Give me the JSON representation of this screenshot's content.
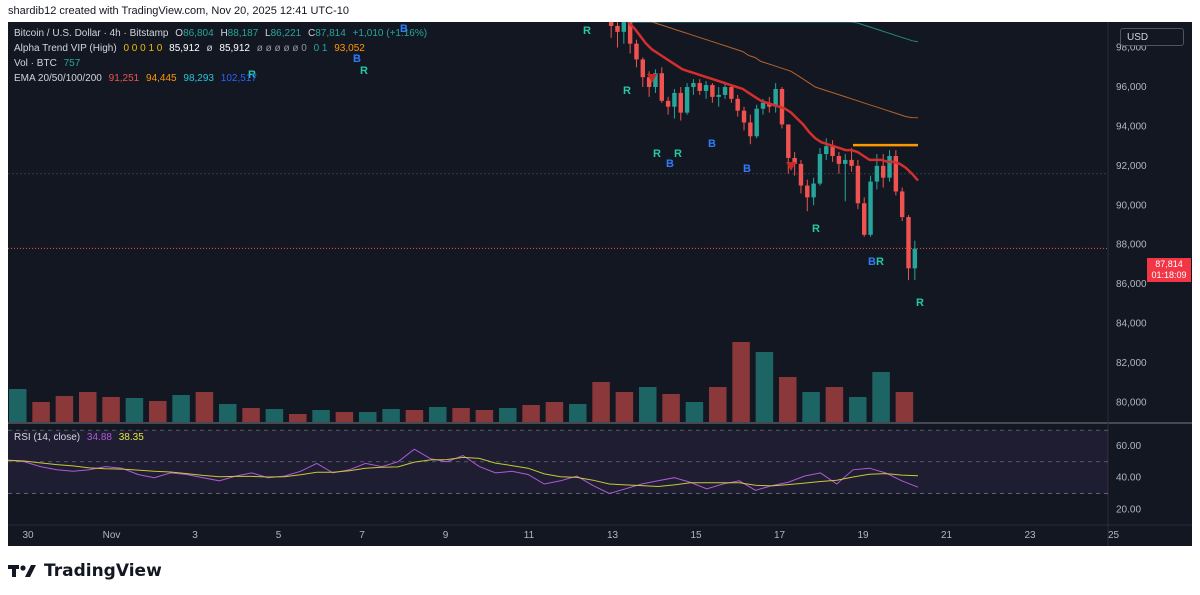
{
  "header": {
    "caption": "shardib12 created with TradingView.com, Nov 20, 2025 12:41 UTC-10"
  },
  "legend": {
    "symbol": "Bitcoin / U.S. Dollar · 4h · Bitstamp",
    "o_label": "O",
    "o_value": "86,804",
    "h_label": "H",
    "h_value": "88,187",
    "l_label": "L",
    "l_value": "86,221",
    "c_label": "C",
    "c_value": "87,814",
    "change": "+1,010 (+1.16%)",
    "alpha_label": "Alpha Trend VIP (High)",
    "alpha_values": "0 0 0 1 0",
    "alpha_v1": "85,912",
    "alpha_sep": "ø",
    "alpha_v2": "85,912",
    "alpha_nulls": "ø ø ø ø ø 0",
    "alpha_tail": "0 1",
    "alpha_v3": "93,052",
    "vol_label": "Vol · BTC",
    "vol_value": "757",
    "ema_label": "EMA 20/50/100/200",
    "ema20": "91,251",
    "ema50": "94,445",
    "ema100": "98,293",
    "ema200": "102,517",
    "rsi_label": "RSI (14, close)",
    "rsi_value": "34.88",
    "rsi_ma": "38.35"
  },
  "currency_button": "USD",
  "last_price": "87,814",
  "countdown": "01:18:09",
  "colors": {
    "background": "#131722",
    "up": "#26a69a",
    "down": "#ef5350",
    "ema20": "#d32f2f",
    "ema50": "#e1762c",
    "ema100": "#26a69a",
    "rsi_line": "#b05ad8",
    "rsi_ma": "#c8c83a",
    "signal_b": "#2f7bff",
    "signal_r": "#26c6a6",
    "alpha_line": "#ff9800"
  },
  "chart_data": {
    "type": "candlestick",
    "title": "Bitcoin / U.S. Dollar · 4h · Bitstamp",
    "x_tick_labels": [
      "30",
      "Nov",
      "3",
      "5",
      "7",
      "9",
      "11",
      "13",
      "15",
      "17",
      "19",
      "21",
      "23",
      "25"
    ],
    "y_tick_labels": [
      "98,000",
      "96,000",
      "94,000",
      "92,000",
      "90,000",
      "88,000",
      "86,000",
      "84,000",
      "82,000",
      "80,000"
    ],
    "y_ticks": [
      98000,
      96000,
      94000,
      92000,
      90000,
      88000,
      86000,
      84000,
      82000,
      80000
    ],
    "ylim": [
      79000,
      99300
    ],
    "rsi_tick_labels": [
      "60.00",
      "40.00",
      "20.00"
    ],
    "rsi_ticks": [
      60,
      40,
      20
    ],
    "rsi_ylim": [
      12,
      72
    ],
    "visible_candles": [
      {
        "o": 99300,
        "h": 99300,
        "l": 98500,
        "c": 99100
      },
      {
        "o": 99100,
        "h": 99300,
        "l": 98000,
        "c": 98800
      },
      {
        "o": 98800,
        "h": 99300,
        "l": 98200,
        "c": 99300
      },
      {
        "o": 99300,
        "h": 99300,
        "l": 97700,
        "c": 98200
      },
      {
        "o": 98200,
        "h": 98400,
        "l": 97000,
        "c": 97400
      },
      {
        "o": 97400,
        "h": 97500,
        "l": 96000,
        "c": 96500
      },
      {
        "o": 96500,
        "h": 96800,
        "l": 95500,
        "c": 96000
      },
      {
        "o": 96000,
        "h": 96900,
        "l": 95700,
        "c": 96700
      },
      {
        "o": 96700,
        "h": 97000,
        "l": 95200,
        "c": 95300
      },
      {
        "o": 95300,
        "h": 95500,
        "l": 94600,
        "c": 95000
      },
      {
        "o": 95000,
        "h": 95900,
        "l": 94400,
        "c": 95700
      },
      {
        "o": 95700,
        "h": 96000,
        "l": 94300,
        "c": 94700
      },
      {
        "o": 94700,
        "h": 96200,
        "l": 94600,
        "c": 96000
      },
      {
        "o": 96000,
        "h": 96400,
        "l": 95600,
        "c": 96200
      },
      {
        "o": 96200,
        "h": 96400,
        "l": 95600,
        "c": 95800
      },
      {
        "o": 95800,
        "h": 96300,
        "l": 95400,
        "c": 96100
      },
      {
        "o": 96100,
        "h": 96200,
        "l": 95200,
        "c": 95500
      },
      {
        "o": 95500,
        "h": 96000,
        "l": 95000,
        "c": 95600
      },
      {
        "o": 95600,
        "h": 96200,
        "l": 95400,
        "c": 96000
      },
      {
        "o": 96000,
        "h": 96100,
        "l": 95200,
        "c": 95400
      },
      {
        "o": 95400,
        "h": 95600,
        "l": 94500,
        "c": 94800
      },
      {
        "o": 94800,
        "h": 95000,
        "l": 93800,
        "c": 94200
      },
      {
        "o": 94200,
        "h": 94600,
        "l": 93100,
        "c": 93500
      },
      {
        "o": 93500,
        "h": 95100,
        "l": 93400,
        "c": 94900
      },
      {
        "o": 94900,
        "h": 95400,
        "l": 94600,
        "c": 95200
      },
      {
        "o": 95200,
        "h": 95500,
        "l": 94700,
        "c": 95000
      },
      {
        "o": 95000,
        "h": 96200,
        "l": 94700,
        "c": 95900
      },
      {
        "o": 95900,
        "h": 96000,
        "l": 93900,
        "c": 94100
      },
      {
        "o": 94100,
        "h": 93900,
        "l": 91600,
        "c": 92400
      },
      {
        "o": 92400,
        "h": 92700,
        "l": 91500,
        "c": 92100
      },
      {
        "o": 92100,
        "h": 92300,
        "l": 90600,
        "c": 91000
      },
      {
        "o": 91000,
        "h": 91300,
        "l": 89700,
        "c": 90400
      },
      {
        "o": 90400,
        "h": 91400,
        "l": 90000,
        "c": 91100
      },
      {
        "o": 91100,
        "h": 92900,
        "l": 91000,
        "c": 92600
      },
      {
        "o": 92600,
        "h": 93400,
        "l": 92300,
        "c": 93000
      },
      {
        "o": 93000,
        "h": 93300,
        "l": 92200,
        "c": 92500
      },
      {
        "o": 92500,
        "h": 92700,
        "l": 91600,
        "c": 92100
      },
      {
        "o": 92100,
        "h": 92600,
        "l": 90200,
        "c": 92300
      },
      {
        "o": 92300,
        "h": 92900,
        "l": 91700,
        "c": 92000
      },
      {
        "o": 92000,
        "h": 92300,
        "l": 89800,
        "c": 90100
      },
      {
        "o": 90100,
        "h": 90400,
        "l": 88400,
        "c": 88500
      },
      {
        "o": 88500,
        "h": 91500,
        "l": 88400,
        "c": 91200
      },
      {
        "o": 91200,
        "h": 92600,
        "l": 90800,
        "c": 92000
      },
      {
        "o": 92000,
        "h": 92600,
        "l": 90900,
        "c": 91400
      },
      {
        "o": 91400,
        "h": 92800,
        "l": 91200,
        "c": 92500
      },
      {
        "o": 92500,
        "h": 92800,
        "l": 90500,
        "c": 90700
      },
      {
        "o": 90700,
        "h": 90900,
        "l": 89200,
        "c": 89400
      },
      {
        "o": 89400,
        "h": 89500,
        "l": 86200,
        "c": 86800
      },
      {
        "o": 86800,
        "h": 88200,
        "l": 86200,
        "c": 87800
      }
    ],
    "ema_values": [
      {
        "name": "EMA 20",
        "values": [
          99300,
          99000,
          98600,
          98200,
          97900,
          97700,
          97500,
          97300,
          97100,
          96900,
          96800,
          96700,
          96600,
          96500,
          96400,
          96300,
          96200,
          96100,
          96000,
          95900,
          95700,
          95500,
          95300,
          95200,
          95100,
          95000,
          94900,
          94700,
          94400,
          94100,
          93700,
          93400,
          93200,
          93100,
          93000,
          92900,
          92800,
          92800,
          92700,
          92500,
          92300,
          92300,
          92300,
          92200,
          92200,
          92100,
          91900,
          91600,
          91250
        ]
      },
      {
        "name": "EMA 50",
        "values": [
          99300,
          99300,
          99300,
          99300,
          99300,
          99200,
          99100,
          99000,
          98900,
          98800,
          98700,
          98600,
          98500,
          98400,
          98300,
          98200,
          98100,
          98000,
          97900,
          97800,
          97600,
          97500,
          97300,
          97200,
          97100,
          97000,
          96900,
          96800,
          96600,
          96400,
          96200,
          96000,
          95900,
          95800,
          95700,
          95600,
          95500,
          95400,
          95300,
          95200,
          95100,
          95000,
          94900,
          94800,
          94700,
          94600,
          94500,
          94450,
          94445
        ]
      },
      {
        "name": "EMA 100",
        "values": [
          99300,
          99300,
          99300,
          99300,
          99300,
          99300,
          99300,
          99300,
          99300,
          99300,
          99300,
          99300,
          99300,
          99300,
          99300,
          99300,
          99300,
          99300,
          99300,
          99300,
          99300,
          99300,
          99300,
          99300,
          99300,
          99300,
          99300,
          99300,
          99300,
          99300,
          99300,
          99300,
          99300,
          99300,
          99300,
          99300,
          99300,
          99300,
          99250,
          99150,
          99050,
          98950,
          98850,
          98750,
          98650,
          98550,
          98450,
          98350,
          98293
        ]
      }
    ],
    "alpha_trend_level": 93052,
    "signals": [
      {
        "label": "R",
        "kind": "buy-ish"
      },
      {
        "label": "B",
        "kind": "buy"
      },
      {
        "label": "R",
        "kind": "r"
      }
    ],
    "volume_bars": [
      {
        "v": 33,
        "up": true
      },
      {
        "v": 20,
        "up": false
      },
      {
        "v": 26,
        "up": false
      },
      {
        "v": 30,
        "up": false
      },
      {
        "v": 25,
        "up": false
      },
      {
        "v": 24,
        "up": true
      },
      {
        "v": 21,
        "up": false
      },
      {
        "v": 27,
        "up": true
      },
      {
        "v": 30,
        "up": false
      },
      {
        "v": 18,
        "up": true
      },
      {
        "v": 14,
        "up": false
      },
      {
        "v": 13,
        "up": true
      },
      {
        "v": 8,
        "up": false
      },
      {
        "v": 12,
        "up": true
      },
      {
        "v": 10,
        "up": false
      },
      {
        "v": 10,
        "up": true
      },
      {
        "v": 13,
        "up": true
      },
      {
        "v": 12,
        "up": false
      },
      {
        "v": 15,
        "up": true
      },
      {
        "v": 14,
        "up": false
      },
      {
        "v": 12,
        "up": false
      },
      {
        "v": 14,
        "up": true
      },
      {
        "v": 17,
        "up": false
      },
      {
        "v": 20,
        "up": false
      },
      {
        "v": 18,
        "up": true
      },
      {
        "v": 40,
        "up": false
      },
      {
        "v": 30,
        "up": false
      },
      {
        "v": 35,
        "up": true
      },
      {
        "v": 28,
        "up": false
      },
      {
        "v": 20,
        "up": true
      },
      {
        "v": 35,
        "up": false
      },
      {
        "v": 80,
        "up": false
      },
      {
        "v": 70,
        "up": true
      },
      {
        "v": 45,
        "up": false
      },
      {
        "v": 30,
        "up": true
      },
      {
        "v": 35,
        "up": false
      },
      {
        "v": 25,
        "up": true
      },
      {
        "v": 50,
        "up": true
      },
      {
        "v": 30,
        "up": false
      }
    ],
    "rsi": [
      51,
      50,
      47,
      45,
      44,
      45,
      47,
      46,
      42,
      40,
      43,
      42,
      40,
      38,
      41,
      43,
      40,
      41,
      44,
      49,
      43,
      45,
      49,
      47,
      50,
      58,
      52,
      50,
      54,
      47,
      43,
      44,
      42,
      36,
      38,
      41,
      35,
      30,
      33,
      36,
      38,
      40,
      37,
      33,
      36,
      38,
      32,
      35,
      37,
      41,
      43,
      36,
      45,
      46,
      43,
      38,
      34
    ]
  }
}
